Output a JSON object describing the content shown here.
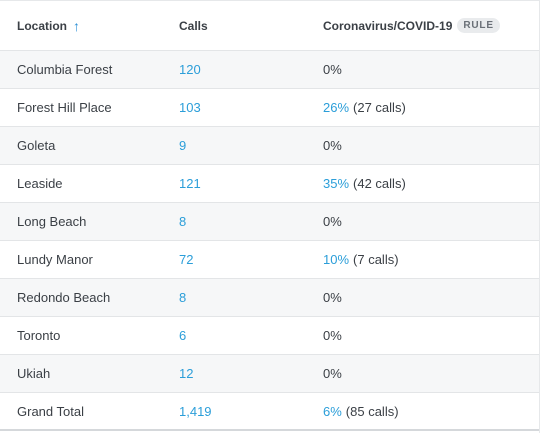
{
  "header": {
    "location": "Location",
    "calls": "Calls",
    "covid": "Coronavirus/COVID-19",
    "rule_badge": "RULE",
    "sort_icon": "arrow-up-icon"
  },
  "rows": [
    {
      "location": "Columbia Forest",
      "calls": "120",
      "pct": "0%",
      "pct_linked": false,
      "note": ""
    },
    {
      "location": "Forest Hill Place",
      "calls": "103",
      "pct": "26%",
      "pct_linked": true,
      "note": "(27 calls)"
    },
    {
      "location": "Goleta",
      "calls": "9",
      "pct": "0%",
      "pct_linked": false,
      "note": ""
    },
    {
      "location": "Leaside",
      "calls": "121",
      "pct": "35%",
      "pct_linked": true,
      "note": "(42 calls)"
    },
    {
      "location": "Long Beach",
      "calls": "8",
      "pct": "0%",
      "pct_linked": false,
      "note": ""
    },
    {
      "location": "Lundy Manor",
      "calls": "72",
      "pct": "10%",
      "pct_linked": true,
      "note": "(7 calls)"
    },
    {
      "location": "Redondo Beach",
      "calls": "8",
      "pct": "0%",
      "pct_linked": false,
      "note": ""
    },
    {
      "location": "Toronto",
      "calls": "6",
      "pct": "0%",
      "pct_linked": false,
      "note": ""
    },
    {
      "location": "Ukiah",
      "calls": "12",
      "pct": "0%",
      "pct_linked": false,
      "note": ""
    }
  ],
  "total": {
    "location": "Grand Total",
    "calls": "1,419",
    "pct": "6%",
    "note": "(85 calls)"
  },
  "colors": {
    "link": "#2b9ed9",
    "sort_arrow": "#2b8fd6",
    "alt_row": "#f6f7f8"
  }
}
